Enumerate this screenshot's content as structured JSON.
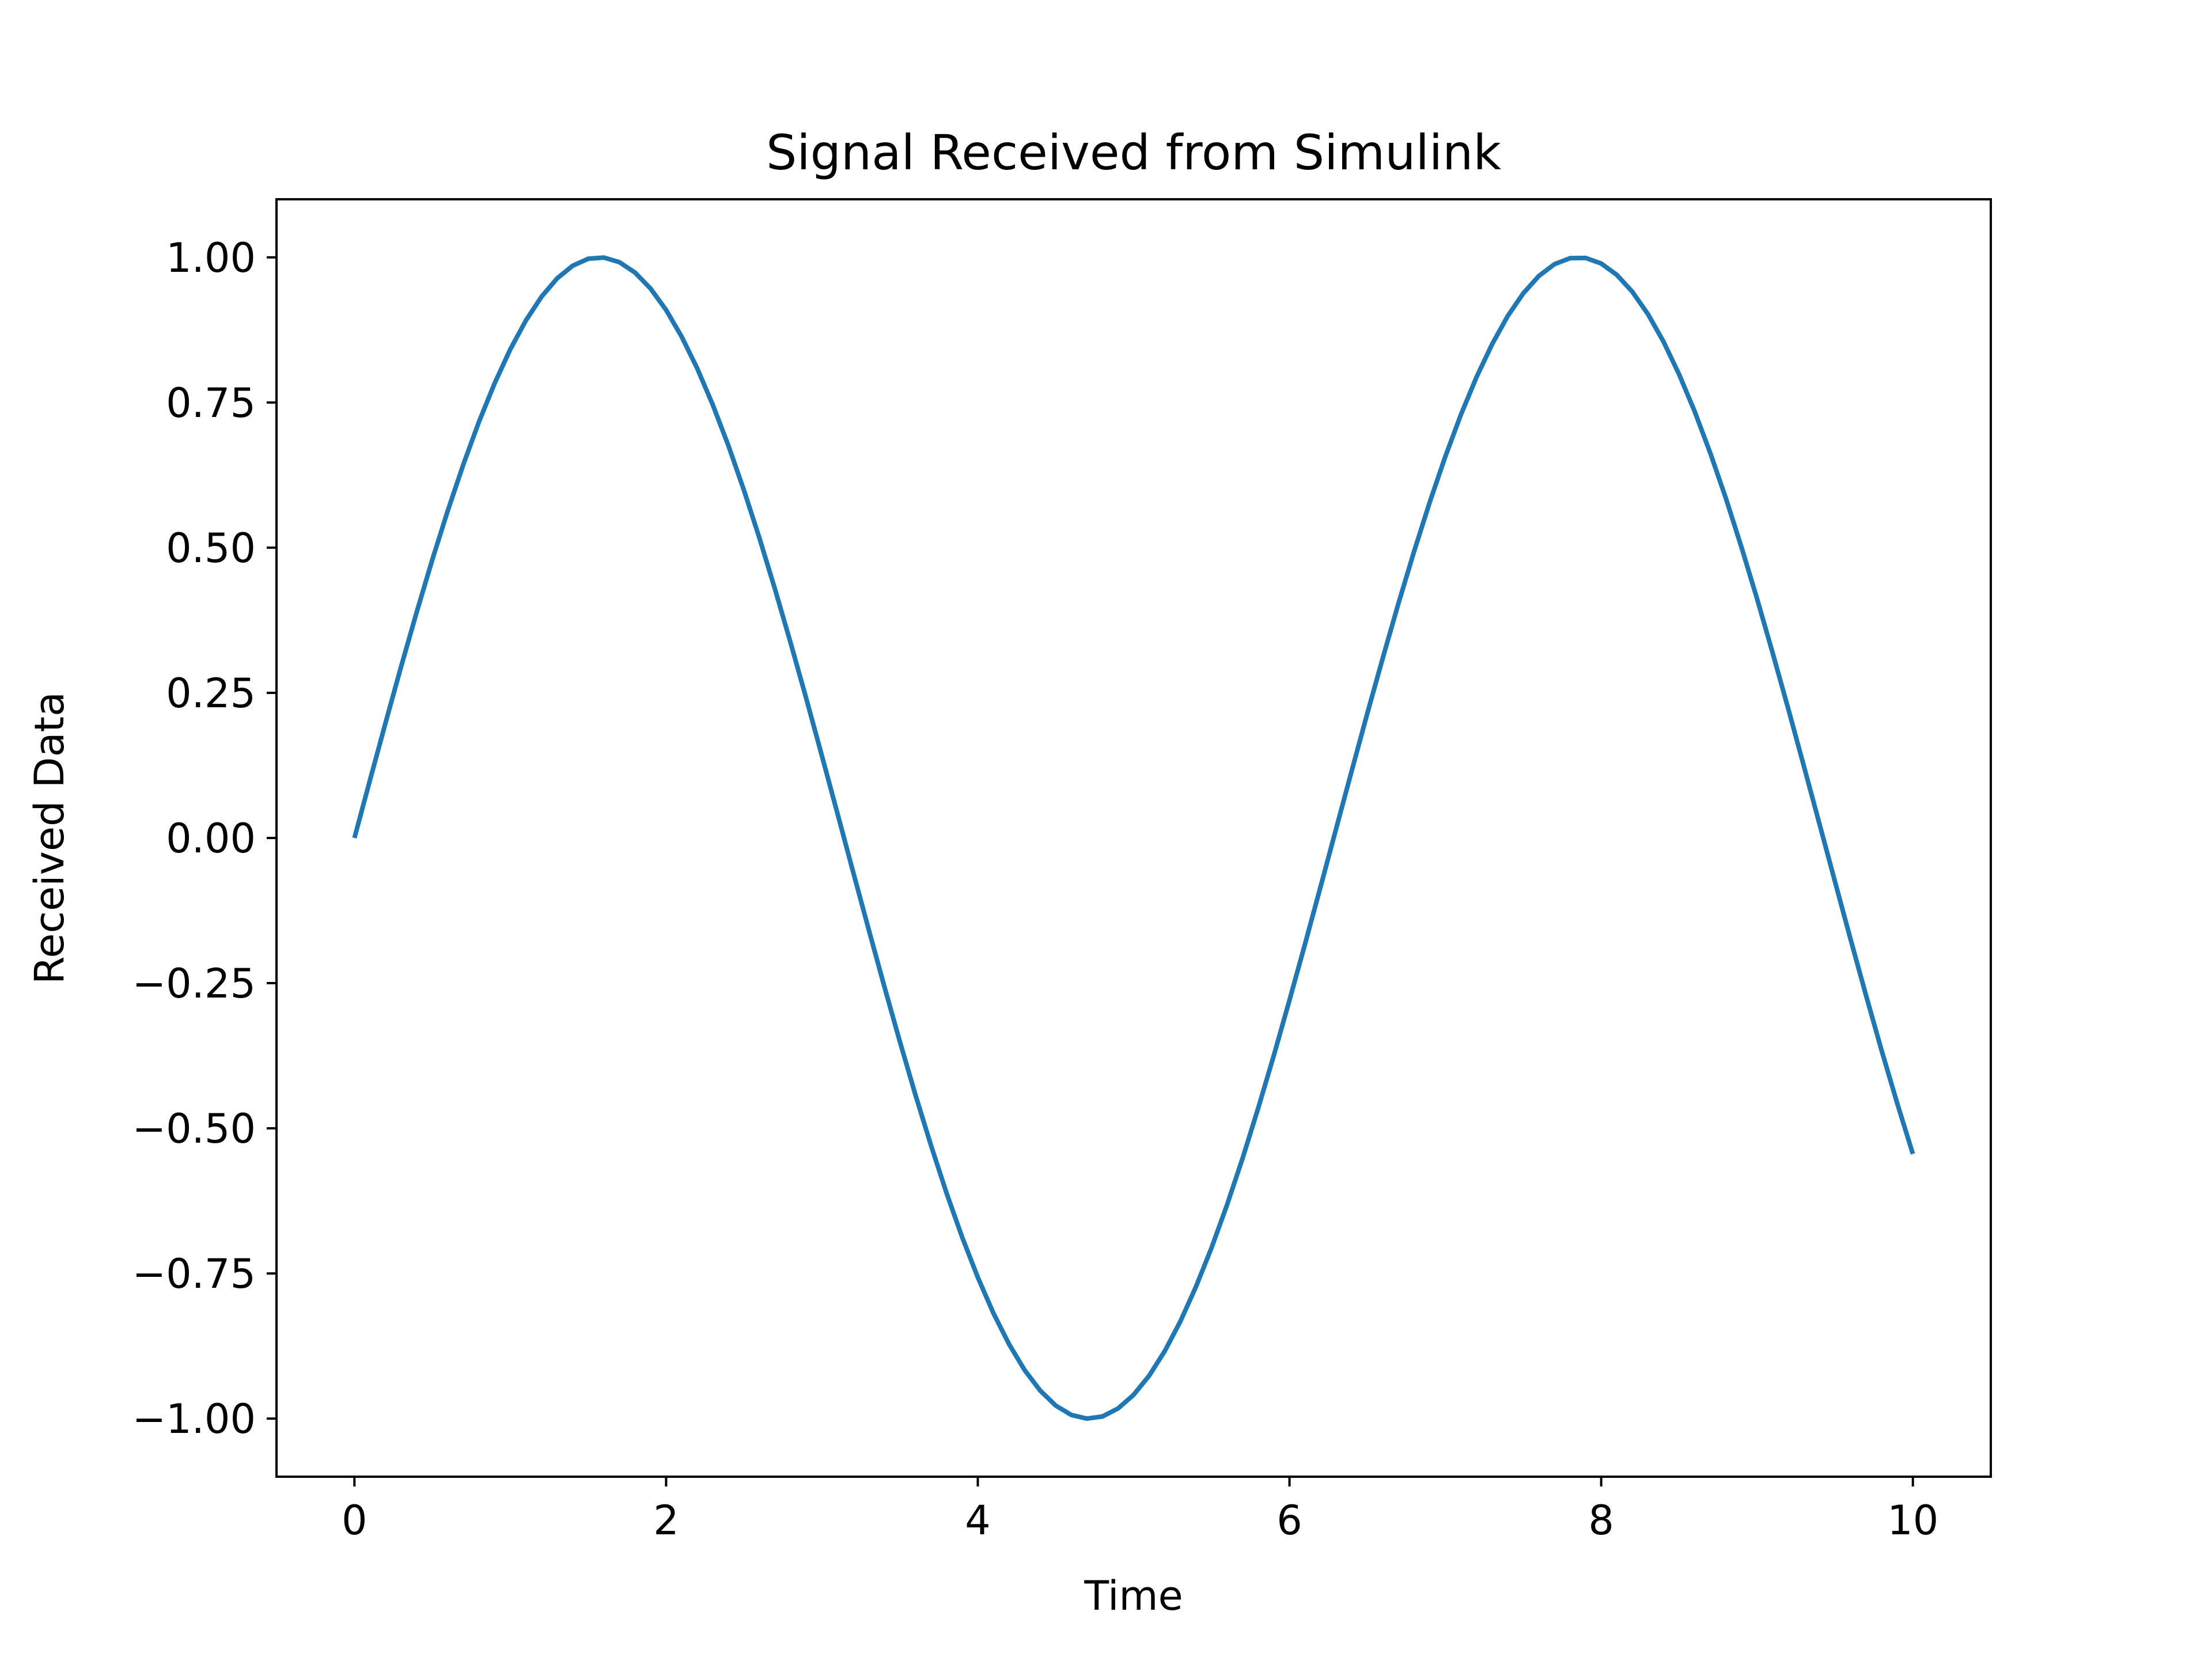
{
  "chart_data": {
    "type": "line",
    "title": "Signal Received from Simulink",
    "xlabel": "Time",
    "ylabel": "Received Data",
    "xlim": [
      -0.5,
      10.5
    ],
    "ylim": [
      -1.1,
      1.1
    ],
    "xticks": [
      0,
      2,
      4,
      6,
      8,
      10
    ],
    "xtick_labels": [
      "0",
      "2",
      "4",
      "6",
      "8",
      "10"
    ],
    "yticks": [
      1.0,
      0.75,
      0.5,
      0.25,
      0.0,
      -0.25,
      -0.5,
      -0.75,
      -1.0
    ],
    "ytick_labels": [
      "1.00",
      "0.75",
      "0.50",
      "0.25",
      "0.00",
      "−0.25",
      "−0.50",
      "−0.75",
      "−1.00"
    ],
    "grid": false,
    "legend": "none",
    "series": [
      {
        "color": "#1f77b4",
        "x": [
          0,
          0.1,
          0.2,
          0.3,
          0.4,
          0.5,
          0.6,
          0.7,
          0.8,
          0.9,
          1.0,
          1.1,
          1.2,
          1.3,
          1.4,
          1.5,
          1.6,
          1.7,
          1.8,
          1.9,
          2.0,
          2.1,
          2.2,
          2.3,
          2.4,
          2.5,
          2.6,
          2.7,
          2.8,
          2.9,
          3.0,
          3.1,
          3.2,
          3.3,
          3.4,
          3.5,
          3.6,
          3.7,
          3.8,
          3.9,
          4.0,
          4.1,
          4.2,
          4.3,
          4.4,
          4.5,
          4.6,
          4.7,
          4.8,
          4.9,
          5.0,
          5.1,
          5.2,
          5.3,
          5.4,
          5.5,
          5.6,
          5.7,
          5.8,
          5.9,
          6.0,
          6.1,
          6.2,
          6.3,
          6.4,
          6.5,
          6.6,
          6.7,
          6.8,
          6.9,
          7.0,
          7.1,
          7.2,
          7.3,
          7.4,
          7.5,
          7.6,
          7.7,
          7.8,
          7.9,
          8.0,
          8.1,
          8.2,
          8.3,
          8.4,
          8.5,
          8.6,
          8.7,
          8.8,
          8.9,
          9.0,
          9.1,
          9.2,
          9.3,
          9.4,
          9.5,
          9.6,
          9.7,
          9.8,
          9.9,
          10.0
        ],
        "y": [
          0.0,
          0.0998,
          0.1987,
          0.2955,
          0.3894,
          0.4794,
          0.5646,
          0.6442,
          0.7174,
          0.7833,
          0.8415,
          0.8912,
          0.932,
          0.9636,
          0.9854,
          0.9975,
          0.9996,
          0.9917,
          0.9738,
          0.9463,
          0.9093,
          0.8632,
          0.8085,
          0.7457,
          0.6755,
          0.5985,
          0.5155,
          0.4274,
          0.335,
          0.2392,
          0.1411,
          0.0416,
          -0.0584,
          -0.1577,
          -0.2555,
          -0.3508,
          -0.4425,
          -0.5298,
          -0.6119,
          -0.6878,
          -0.7568,
          -0.8183,
          -0.8716,
          -0.9162,
          -0.9516,
          -0.9775,
          -0.9937,
          -0.9999,
          -0.9962,
          -0.9825,
          -0.9589,
          -0.9258,
          -0.8835,
          -0.8323,
          -0.7728,
          -0.7055,
          -0.6313,
          -0.5507,
          -0.4646,
          -0.3739,
          -0.2794,
          -0.1822,
          -0.0831,
          0.0168,
          0.1165,
          0.2151,
          0.3115,
          0.4048,
          0.4941,
          0.5784,
          0.657,
          0.729,
          0.7937,
          0.8504,
          0.8987,
          0.938,
          0.9679,
          0.9882,
          0.9985,
          0.9989,
          0.9894,
          0.9699,
          0.9407,
          0.9022,
          0.8546,
          0.7985,
          0.7344,
          0.663,
          0.585,
          0.501,
          0.4121,
          0.319,
          0.2229,
          0.1245,
          0.0248,
          -0.0752,
          -0.1743,
          -0.2718,
          -0.3665,
          -0.4575,
          -0.544
        ]
      }
    ]
  }
}
